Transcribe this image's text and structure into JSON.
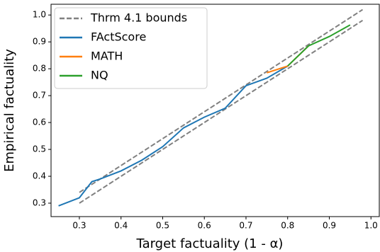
{
  "chart_data": {
    "type": "line",
    "xlabel": "Target factuality (1 - α)",
    "ylabel": "Empirical factuality",
    "xlim": [
      0.232,
      1.02
    ],
    "ylim": [
      0.25,
      1.04
    ],
    "xticks": [
      0.3,
      0.4,
      0.5,
      0.6,
      0.7,
      0.8,
      0.9,
      {
        "value": 1,
        "label": "1.0"
      }
    ],
    "yticks": [
      0.3,
      0.4,
      0.5,
      0.6,
      0.7,
      0.8,
      0.9,
      {
        "value": 1,
        "label": "1.0"
      }
    ],
    "legend": "upper left",
    "series": [
      {
        "name": "Thrm 4.1 bounds",
        "color": "#808080",
        "dashed": true,
        "x": [
          0.3,
          0.98
        ],
        "values": [
          0.34,
          1.02
        ],
        "lower_values": [
          0.3,
          0.98
        ]
      },
      {
        "name": "FActScore",
        "color": "#1f77b4",
        "x": [
          0.25,
          0.3,
          0.33,
          0.35,
          0.4,
          0.45,
          0.5,
          0.55,
          0.6,
          0.65,
          0.7,
          0.75,
          0.8
        ],
        "values": [
          0.29,
          0.32,
          0.38,
          0.39,
          0.42,
          0.46,
          0.51,
          0.58,
          0.62,
          0.653,
          0.737,
          0.765,
          0.81
        ]
      },
      {
        "name": "MATH",
        "color": "#ff7f0e",
        "x": [
          0.75,
          0.8,
          0.85
        ],
        "values": [
          0.785,
          0.81,
          0.885
        ]
      },
      {
        "name": "NQ",
        "color": "#2ca02c",
        "x": [
          0.8,
          0.85,
          0.9,
          0.95
        ],
        "values": [
          0.81,
          0.885,
          0.92,
          0.963
        ]
      }
    ]
  }
}
